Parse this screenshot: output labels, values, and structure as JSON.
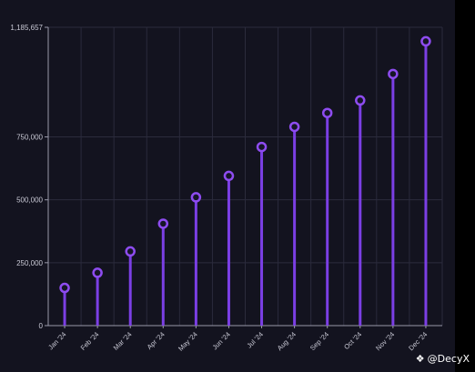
{
  "watermark": {
    "text": "@DecyX",
    "icon": "diamond-logo-icon"
  },
  "colors": {
    "background": "#13131f",
    "grid": "#2b2b3c",
    "axis": "#9a9aaa",
    "stem": "#7b3fe4",
    "marker_stroke": "#8e4cf0",
    "marker_fill": "#161626",
    "text": "#c8c8d4"
  },
  "chart_data": {
    "type": "lollipop",
    "title": "",
    "xlabel": "",
    "ylabel": "",
    "categories": [
      "Jan '24",
      "Feb '24",
      "Mar '24",
      "Apr '24",
      "May '24",
      "Jun '24",
      "Jul '24",
      "Aug '24",
      "Sep '24",
      "Oct '24",
      "Nov '24",
      "Dec '24"
    ],
    "values": [
      150000,
      210000,
      295000,
      405000,
      510000,
      595000,
      710000,
      790000,
      845000,
      895000,
      1000000,
      1130000
    ],
    "ylim": [
      0,
      1185657
    ],
    "yticks": [
      0,
      250000,
      500000,
      750000,
      1185657
    ],
    "ytick_labels": [
      "0",
      "250,000",
      "500,000",
      "750,000",
      "1,185,657"
    ],
    "grid": true,
    "legend": "none"
  }
}
